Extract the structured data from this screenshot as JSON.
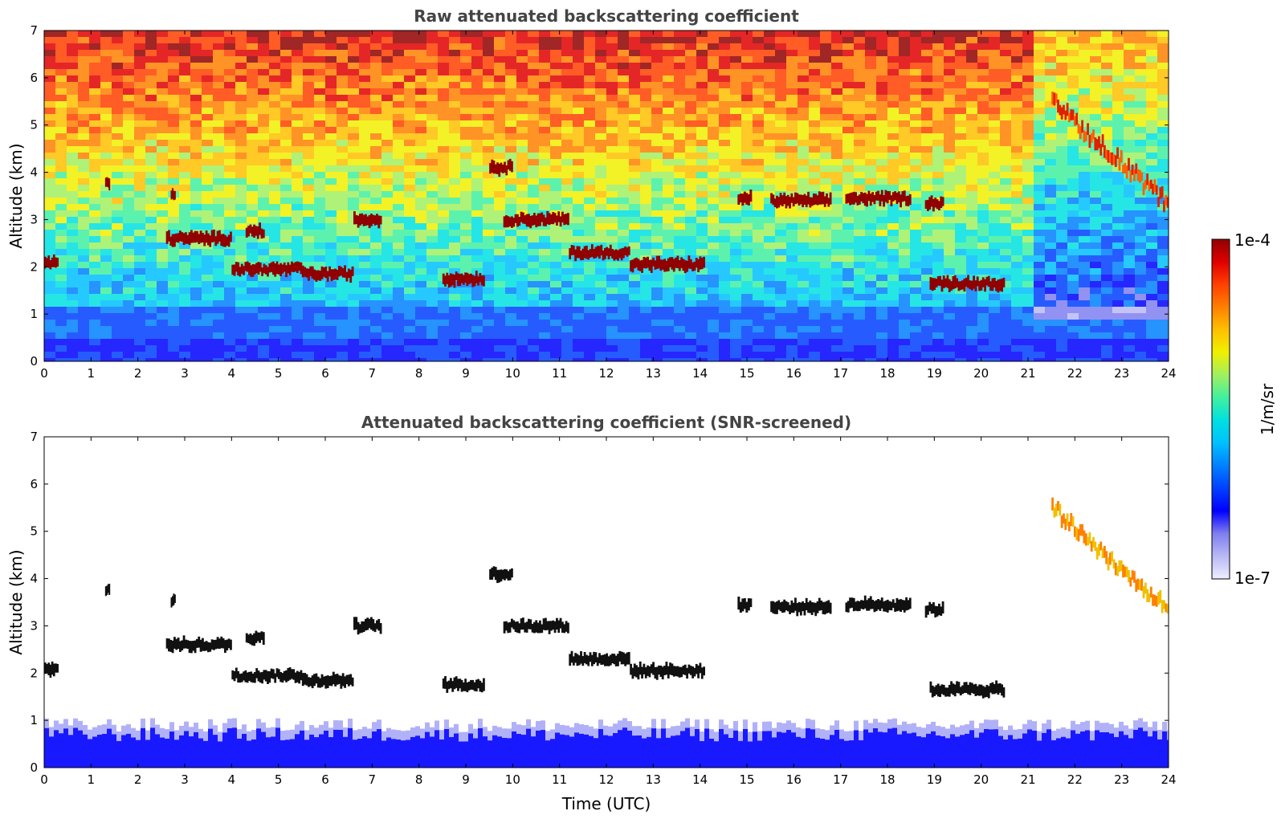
{
  "chart_data": [
    {
      "type": "heatmap",
      "id": "raw",
      "title": "Raw attenuated backscattering coefficient",
      "xlabel": "",
      "ylabel": "Altitude (km)",
      "xlim": [
        0,
        24
      ],
      "ylim": [
        0,
        7
      ],
      "xticks": [
        "0",
        "1",
        "2",
        "3",
        "4",
        "5",
        "6",
        "7",
        "8",
        "9",
        "10",
        "11",
        "12",
        "13",
        "14",
        "15",
        "16",
        "17",
        "18",
        "19",
        "20",
        "21",
        "22",
        "23",
        "24"
      ],
      "yticks": [
        "0",
        "1",
        "2",
        "3",
        "4",
        "5",
        "6",
        "7"
      ],
      "cloud_layers": [
        {
          "t": [
            0.0,
            0.3
          ],
          "alt": 2.08
        },
        {
          "t": [
            1.3,
            1.4
          ],
          "alt": 3.78
        },
        {
          "t": [
            2.6,
            4.0
          ],
          "alt": 2.6
        },
        {
          "t": [
            2.7,
            2.8
          ],
          "alt": 3.55
        },
        {
          "t": [
            4.0,
            5.5
          ],
          "alt": 1.95
        },
        {
          "t": [
            4.3,
            4.7
          ],
          "alt": 2.75
        },
        {
          "t": [
            5.5,
            6.6
          ],
          "alt": 1.85
        },
        {
          "t": [
            6.6,
            7.2
          ],
          "alt": 3.0
        },
        {
          "t": [
            8.5,
            9.4
          ],
          "alt": 1.75
        },
        {
          "t": [
            9.5,
            10.0
          ],
          "alt": 4.1
        },
        {
          "t": [
            9.8,
            11.2
          ],
          "alt": 3.0
        },
        {
          "t": [
            11.2,
            12.5
          ],
          "alt": 2.3
        },
        {
          "t": [
            12.5,
            14.1
          ],
          "alt": 2.05
        },
        {
          "t": [
            14.8,
            15.1
          ],
          "alt": 3.45
        },
        {
          "t": [
            15.5,
            16.8
          ],
          "alt": 3.4
        },
        {
          "t": [
            17.1,
            18.5
          ],
          "alt": 3.45
        },
        {
          "t": [
            18.8,
            19.2
          ],
          "alt": 3.35
        },
        {
          "t": [
            18.9,
            20.5
          ],
          "alt": 1.65
        },
        {
          "t": [
            21.5,
            24.0
          ],
          "alt_range": [
            5.5,
            3.3
          ]
        }
      ]
    },
    {
      "type": "heatmap",
      "id": "screened",
      "title": "Attenuated backscattering coefficient (SNR-screened)",
      "xlabel": "Time (UTC)",
      "ylabel": "Altitude (km)",
      "xlim": [
        0,
        24
      ],
      "ylim": [
        0,
        7
      ],
      "xticks": [
        "0",
        "1",
        "2",
        "3",
        "4",
        "5",
        "6",
        "7",
        "8",
        "9",
        "10",
        "11",
        "12",
        "13",
        "14",
        "15",
        "16",
        "17",
        "18",
        "19",
        "20",
        "21",
        "22",
        "23",
        "24"
      ],
      "yticks": [
        "0",
        "1",
        "2",
        "3",
        "4",
        "5",
        "6",
        "7"
      ]
    }
  ],
  "colorbar": {
    "label": "1/m/sr",
    "max_label": "1e-4",
    "min_label": "1e-7",
    "colors": [
      "#eeeeff",
      "#b8b8f5",
      "#7f7ff0",
      "#0000ff",
      "#0040ff",
      "#0080ff",
      "#00c0ff",
      "#00e0e0",
      "#40f0a0",
      "#a0f060",
      "#f0f000",
      "#ffc000",
      "#ff8000",
      "#ff4000",
      "#e00000",
      "#900000"
    ]
  }
}
